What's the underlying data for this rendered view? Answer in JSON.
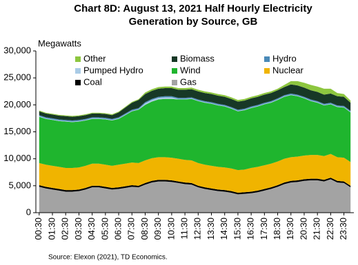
{
  "chart_data": {
    "type": "stacked-area",
    "title": "Chart 8D: August 13, 2021 Half Hourly Electricity Generation by Source, GB",
    "y_label": "Megawatts",
    "source": "Source:  Elexon  (2021), TD Economics.",
    "categories": [
      "00:30",
      null,
      "01:30",
      null,
      "02:30",
      null,
      "03:30",
      null,
      "04:30",
      null,
      "05:30",
      null,
      "06:30",
      null,
      "07:30",
      null,
      "08:30",
      null,
      "09:30",
      null,
      "10:30",
      null,
      "11:30",
      null,
      "12:30",
      null,
      "13:30",
      null,
      "14:30",
      null,
      "15:30",
      null,
      "16:30",
      null,
      "17:30",
      null,
      "18:30",
      null,
      "19:30",
      null,
      "20:30",
      null,
      "21:30",
      null,
      "22:30",
      null,
      "23:30",
      null
    ],
    "ylim": [
      0,
      30000
    ],
    "yticks": [
      0,
      {
        "value": 5000,
        "label": "5,000"
      },
      {
        "value": 10000,
        "label": "10,000"
      },
      {
        "value": 15000,
        "label": "15,000"
      },
      {
        "value": 20000,
        "label": "20,000"
      },
      {
        "value": 25000,
        "label": "25,000"
      },
      {
        "value": 30000,
        "label": "30,000"
      }
    ],
    "series": [
      {
        "name": "Gas",
        "color": "#a3a3a3",
        "values": [
          4800,
          4500,
          4300,
          4100,
          3900,
          3900,
          4000,
          4300,
          4700,
          4700,
          4500,
          4300,
          4400,
          4600,
          4800,
          4700,
          5200,
          5600,
          5800,
          5800,
          5700,
          5500,
          5300,
          5200,
          4700,
          4400,
          4200,
          4000,
          3900,
          3700,
          3400,
          3500,
          3600,
          3800,
          4100,
          4400,
          4800,
          5300,
          5600,
          5700,
          5900,
          6000,
          6000,
          5800,
          6200,
          5600,
          5500,
          4700
        ]
      },
      {
        "name": "Coal",
        "color": "#000000",
        "values": [
          300,
          300,
          300,
          300,
          300,
          300,
          300,
          300,
          300,
          300,
          300,
          300,
          300,
          300,
          300,
          300,
          300,
          300,
          300,
          300,
          300,
          300,
          300,
          300,
          300,
          300,
          300,
          300,
          300,
          300,
          300,
          300,
          300,
          300,
          300,
          300,
          300,
          300,
          300,
          300,
          300,
          300,
          300,
          300,
          300,
          300,
          300,
          300
        ]
      },
      {
        "name": "Nuclear",
        "color": "#f0b400",
        "values": [
          4100,
          4100,
          4100,
          4100,
          4100,
          4100,
          4100,
          4100,
          4100,
          4100,
          4100,
          4100,
          4200,
          4200,
          4200,
          4200,
          4200,
          4200,
          4200,
          4200,
          4200,
          4200,
          4200,
          4200,
          4200,
          4200,
          4200,
          4200,
          4200,
          4200,
          4200,
          4200,
          4400,
          4400,
          4400,
          4400,
          4400,
          4400,
          4400,
          4400,
          4400,
          4400,
          4400,
          4400,
          4400,
          4400,
          4400,
          4400
        ]
      },
      {
        "name": "Wind",
        "color": "#1fb52e",
        "values": [
          8600,
          8500,
          8500,
          8500,
          8600,
          8500,
          8500,
          8400,
          8300,
          8300,
          8400,
          8400,
          8500,
          9000,
          9500,
          9900,
          10300,
          10500,
          10700,
          10800,
          10900,
          11000,
          11200,
          11400,
          11500,
          11500,
          11500,
          11400,
          11300,
          11100,
          10900,
          11000,
          11100,
          11200,
          11300,
          11300,
          11400,
          11500,
          11500,
          11200,
          10600,
          10000,
          9700,
          9400,
          9200,
          9300,
          9300,
          9200
        ]
      },
      {
        "name": "Pumped Hydro",
        "color": "#a9cbe6",
        "values": [
          100,
          100,
          100,
          100,
          100,
          100,
          100,
          100,
          100,
          100,
          100,
          100,
          100,
          100,
          100,
          100,
          300,
          300,
          300,
          300,
          300,
          100,
          100,
          100,
          100,
          100,
          100,
          100,
          100,
          100,
          100,
          100,
          100,
          100,
          100,
          100,
          100,
          100,
          100,
          100,
          100,
          100,
          100,
          100,
          100,
          100,
          100,
          100
        ]
      },
      {
        "name": "Hydro",
        "color": "#4a8ab8",
        "values": [
          200,
          200,
          200,
          200,
          200,
          200,
          200,
          200,
          200,
          200,
          200,
          200,
          200,
          200,
          200,
          200,
          200,
          200,
          200,
          200,
          200,
          200,
          200,
          200,
          200,
          200,
          200,
          200,
          200,
          200,
          200,
          200,
          200,
          200,
          200,
          200,
          200,
          200,
          200,
          200,
          200,
          200,
          200,
          200,
          200,
          200,
          200,
          200
        ]
      },
      {
        "name": "Biomass",
        "color": "#173826",
        "values": [
          700,
          700,
          700,
          700,
          700,
          700,
          700,
          700,
          700,
          700,
          700,
          700,
          900,
          1100,
          1300,
          1500,
          1500,
          1500,
          1500,
          1500,
          1500,
          1500,
          1500,
          1500,
          1500,
          1500,
          1500,
          1500,
          1500,
          1500,
          1500,
          1500,
          1500,
          1500,
          1500,
          1500,
          1500,
          1500,
          1700,
          1700,
          1700,
          1700,
          1700,
          1700,
          1700,
          1700,
          1700,
          1500
        ]
      },
      {
        "name": "Other",
        "color": "#8dc63f",
        "values": [
          150,
          150,
          150,
          150,
          150,
          150,
          150,
          150,
          150,
          150,
          150,
          150,
          150,
          150,
          150,
          150,
          300,
          300,
          300,
          300,
          300,
          300,
          300,
          300,
          300,
          300,
          300,
          300,
          300,
          300,
          300,
          300,
          300,
          300,
          300,
          300,
          300,
          400,
          600,
          800,
          900,
          1000,
          1000,
          1100,
          900,
          600,
          500,
          400
        ]
      }
    ],
    "legend_order": [
      7,
      6,
      5,
      4,
      3,
      2,
      1,
      0
    ]
  }
}
